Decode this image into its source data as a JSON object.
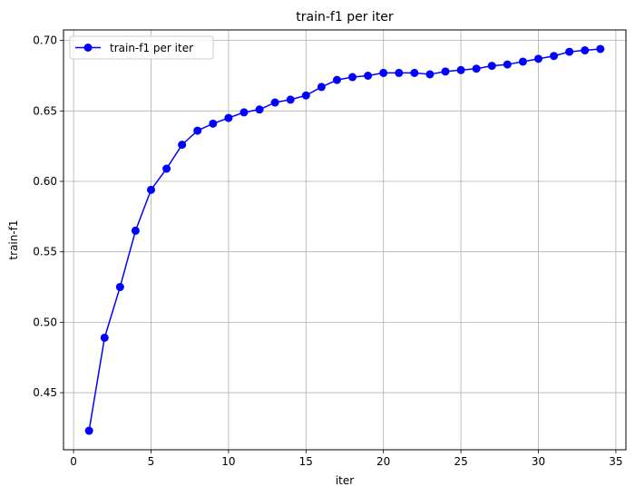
{
  "chart_data": {
    "type": "line",
    "title": "train-f1 per iter",
    "xlabel": "iter",
    "ylabel": "train-f1",
    "xlim": [
      -0.65,
      35.65
    ],
    "ylim": [
      0.4095,
      0.7075
    ],
    "xticks": [
      0,
      5,
      10,
      15,
      20,
      25,
      30,
      35
    ],
    "yticks": [
      0.45,
      0.5,
      0.55,
      0.6,
      0.65,
      0.7
    ],
    "ytick_labels": [
      "0.45",
      "0.50",
      "0.55",
      "0.60",
      "0.65",
      "0.70"
    ],
    "grid": true,
    "legend_position": "top-left",
    "series": [
      {
        "name": "train-f1 per iter",
        "color": "#0000ff",
        "marker": "circle",
        "x": [
          1,
          2,
          3,
          4,
          5,
          6,
          7,
          8,
          9,
          10,
          11,
          12,
          13,
          14,
          15,
          16,
          17,
          18,
          19,
          20,
          21,
          22,
          23,
          24,
          25,
          26,
          27,
          28,
          29,
          30,
          31,
          32,
          33,
          34
        ],
        "y": [
          0.423,
          0.489,
          0.525,
          0.565,
          0.594,
          0.609,
          0.626,
          0.636,
          0.641,
          0.645,
          0.649,
          0.651,
          0.656,
          0.658,
          0.661,
          0.667,
          0.672,
          0.674,
          0.675,
          0.677,
          0.677,
          0.677,
          0.676,
          0.678,
          0.679,
          0.68,
          0.682,
          0.683,
          0.685,
          0.687,
          0.689,
          0.692,
          0.693,
          0.694
        ]
      }
    ]
  }
}
